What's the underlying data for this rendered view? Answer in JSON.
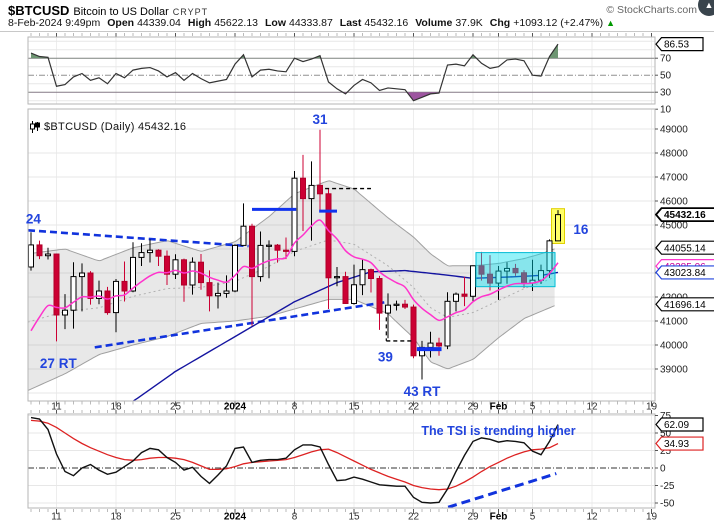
{
  "header": {
    "symbol": "$BTCUSD",
    "name": "Bitcoin to US Dollar",
    "exchange": "CRYPT",
    "copyright": "© StockCharts.com",
    "datetime": "8-Feb-2024 9:49pm",
    "quote": [
      {
        "label": "Open",
        "value": "44339.04"
      },
      {
        "label": "High",
        "value": "45622.13"
      },
      {
        "label": "Low",
        "value": "44333.87"
      },
      {
        "label": "Last",
        "value": "45432.16"
      },
      {
        "label": "Volume",
        "value": "37.9K"
      },
      {
        "label": "Chg",
        "value": "+1093.12 (+2.47%)"
      }
    ],
    "chg_direction": "up"
  },
  "chart_label": {
    "icon": "candlestick-chart-icon",
    "text": "$BTCUSD (Daily) 45432.16"
  },
  "colors": {
    "annotation_blue": "#2244dd",
    "candle_up": "#ffffff",
    "candle_down": "#cc0033",
    "pink_ma": "#ff33cc",
    "navy_ma": "#1414a0",
    "band_edge": "#a0a0a0",
    "box_cyan": "#00bcd4",
    "highlight_yellow": "#ffff66",
    "tsi_line": "#111111",
    "tsi_signal": "#dd2222",
    "overbought_fill": "#6e9673",
    "oversold_fill": "#9d55a0",
    "chg_green": "#009900"
  },
  "chart_data": {
    "x_labels": [
      {
        "text": "11",
        "i": 3
      },
      {
        "text": "18",
        "i": 10
      },
      {
        "text": "25",
        "i": 17
      },
      {
        "text": "2024",
        "i": 24,
        "bold": true
      },
      {
        "text": "8",
        "i": 31
      },
      {
        "text": "15",
        "i": 38
      },
      {
        "text": "22",
        "i": 45
      },
      {
        "text": "29",
        "i": 52
      },
      {
        "text": "Feb",
        "i": 55,
        "bold": true
      },
      {
        "text": "5",
        "i": 59
      },
      {
        "text": "12",
        "i": 66
      },
      {
        "text": "19",
        "i": 73
      }
    ],
    "panels": [
      {
        "id": "rsi",
        "type": "line",
        "ylim": [
          8,
          95
        ],
        "yticks": [
          70,
          50,
          30,
          10
        ],
        "overbought": 70,
        "oversold": 30,
        "midline": 50,
        "last_tag": "86.53",
        "values": [
          76,
          72,
          71,
          37,
          39,
          48,
          52,
          44,
          47,
          40,
          52,
          47,
          56,
          58,
          59,
          55,
          48,
          53,
          44,
          52,
          46,
          41,
          43,
          45,
          63,
          74,
          48,
          56,
          57,
          55,
          54,
          70,
          66,
          69,
          73,
          42,
          34,
          28,
          38,
          45,
          41,
          32,
          35,
          34,
          33,
          20,
          24,
          28,
          29,
          62,
          63,
          61,
          74,
          64,
          58,
          60,
          68,
          69,
          67,
          50,
          49,
          72,
          86.53
        ]
      },
      {
        "id": "price",
        "type": "candlestick",
        "ylim": [
          37650,
          49790
        ],
        "yticks": [
          49000,
          48000,
          47000,
          46000,
          45000,
          44000,
          43000,
          42000,
          41000,
          40000,
          39000
        ],
        "candles": [
          [
            43250,
            44700,
            43100,
            44170
          ],
          [
            44170,
            44350,
            43580,
            43720
          ],
          [
            43720,
            44050,
            43560,
            43790
          ],
          [
            43790,
            43810,
            40150,
            41250
          ],
          [
            41250,
            42120,
            40660,
            41450
          ],
          [
            41450,
            43450,
            40680,
            42850
          ],
          [
            42850,
            43400,
            41400,
            43000
          ],
          [
            43000,
            43080,
            41680,
            41940
          ],
          [
            41940,
            42680,
            41700,
            42250
          ],
          [
            42250,
            42420,
            41260,
            41350
          ],
          [
            41350,
            42750,
            40530,
            42650
          ],
          [
            42650,
            43480,
            41810,
            42250
          ],
          [
            42250,
            44280,
            42200,
            43650
          ],
          [
            43650,
            44240,
            43290,
            43850
          ],
          [
            43850,
            44400,
            43440,
            43950
          ],
          [
            43950,
            43990,
            43290,
            43700
          ],
          [
            43700,
            43940,
            42500,
            42950
          ],
          [
            42950,
            43780,
            42750,
            43550
          ],
          [
            43550,
            43600,
            41800,
            42500
          ],
          [
            42500,
            43650,
            42100,
            43450
          ],
          [
            43450,
            43790,
            42300,
            42600
          ],
          [
            42600,
            43110,
            41400,
            42050
          ],
          [
            42050,
            42600,
            41520,
            42150
          ],
          [
            42150,
            42900,
            41970,
            42250
          ],
          [
            42250,
            44200,
            42200,
            44150
          ],
          [
            44150,
            45900,
            44150,
            44950
          ],
          [
            44950,
            45050,
            40800,
            42850
          ],
          [
            42850,
            44730,
            42640,
            44150
          ],
          [
            44150,
            44360,
            42780,
            44160
          ],
          [
            44160,
            44210,
            43430,
            43950
          ],
          [
            43950,
            44480,
            43580,
            43900
          ],
          [
            43900,
            47250,
            43700,
            46950
          ],
          [
            46950,
            47920,
            44750,
            46100
          ],
          [
            46100,
            47650,
            44350,
            46650
          ],
          [
            46650,
            48970,
            45600,
            46300
          ],
          [
            46300,
            46500,
            41500,
            42800
          ],
          [
            42800,
            43250,
            42450,
            42850
          ],
          [
            42850,
            43050,
            41720,
            41730
          ],
          [
            41730,
            43350,
            41680,
            42510
          ],
          [
            42510,
            43600,
            42080,
            43140
          ],
          [
            43140,
            43180,
            42190,
            42770
          ],
          [
            42770,
            42880,
            40630,
            41330
          ],
          [
            41330,
            42150,
            40280,
            41660
          ],
          [
            41660,
            41850,
            41440,
            41700
          ],
          [
            41700,
            41880,
            41500,
            41580
          ],
          [
            41580,
            41680,
            39450,
            39550
          ],
          [
            39550,
            40170,
            38560,
            39900
          ],
          [
            39900,
            40550,
            39480,
            40080
          ],
          [
            40080,
            40300,
            39550,
            39960
          ],
          [
            39960,
            42200,
            39830,
            41820
          ],
          [
            41820,
            42190,
            41400,
            42120
          ],
          [
            42120,
            42840,
            41620,
            42030
          ],
          [
            42030,
            43320,
            41790,
            43300
          ],
          [
            43300,
            43880,
            42680,
            42950
          ],
          [
            42950,
            43745,
            42270,
            42580
          ],
          [
            42580,
            43290,
            41880,
            43080
          ],
          [
            43080,
            43450,
            42550,
            43190
          ],
          [
            43190,
            43380,
            42880,
            43010
          ],
          [
            43010,
            43120,
            42380,
            42580
          ],
          [
            42580,
            43550,
            42250,
            42700
          ],
          [
            42700,
            43350,
            42540,
            43100
          ],
          [
            43100,
            44400,
            42790,
            44340
          ],
          [
            44339.04,
            45622.13,
            44333.87,
            45432.16
          ]
        ],
        "overlays": {
          "pink_ema": {
            "period": 10,
            "seed": 39800
          },
          "navy_anchors": [
            [
              8,
              36200
            ],
            [
              12,
              37650
            ],
            [
              17,
              38900
            ],
            [
              24,
              40350
            ],
            [
              31,
              41800
            ],
            [
              36,
              42600
            ],
            [
              40,
              43050
            ],
            [
              44,
              43100
            ],
            [
              48,
              42950
            ],
            [
              52,
              42780
            ],
            [
              56,
              42830
            ],
            [
              60,
              42900
            ],
            [
              62,
              43025
            ]
          ],
          "band_anchors": [
            [
              -0.4,
              43800,
              38100
            ],
            [
              4,
              44000,
              38800
            ],
            [
              8,
              43500,
              39600
            ],
            [
              12,
              44050,
              40000
            ],
            [
              16,
              44350,
              40350
            ],
            [
              20,
              43900,
              40900
            ],
            [
              24,
              44300,
              41000
            ],
            [
              28,
              45350,
              41200
            ],
            [
              31,
              46300,
              41500
            ],
            [
              35,
              46850,
              41900
            ],
            [
              38,
              46500,
              41900
            ],
            [
              42,
              45300,
              41300
            ],
            [
              45,
              44500,
              40300
            ],
            [
              47,
              43800,
              39300
            ],
            [
              49,
              43300,
              39000
            ],
            [
              52,
              43300,
              39400
            ],
            [
              55,
              43400,
              40300
            ],
            [
              58,
              43600,
              41100
            ],
            [
              60,
              43800,
              41400
            ],
            [
              62,
              44055,
              41696
            ]
          ]
        },
        "trendlines": [
          {
            "from": [
              -0.35,
              44780
            ],
            "to": [
              25.6,
              44120
            ]
          },
          {
            "from": [
              7.5,
              39900
            ],
            "to": [
              42,
              41800
            ]
          }
        ],
        "segments": [
          {
            "from": [
              26,
              45650
            ],
            "to": [
              31.2,
              45650
            ],
            "style": "blue",
            "w": 3
          },
          {
            "from": [
              33.9,
              45580
            ],
            "to": [
              36,
              45580
            ],
            "style": "blue",
            "w": 3
          },
          {
            "from": [
              45.4,
              39830
            ],
            "to": [
              48.3,
              39830
            ],
            "style": "blue",
            "w": 4
          },
          {
            "from": [
              34.6,
              46520
            ],
            "to": [
              40,
              46520
            ],
            "style": "black-dashed",
            "w": 1.4
          },
          {
            "from": [
              41.8,
              40170
            ],
            "to": [
              44.8,
              40170
            ],
            "style": "black-dashed",
            "w": 1.4
          },
          {
            "from": [
              41.8,
              41150
            ],
            "to": [
              41.8,
              40170
            ],
            "style": "black-dashed",
            "w": 1.2
          }
        ],
        "box": {
          "from_index": 52.35,
          "to_index": 61.65,
          "top": 43850,
          "bottom": 42430
        },
        "highlight": {
          "index": 62,
          "top": 45680,
          "bottom": 44230
        },
        "annotations": [
          {
            "text": "24",
            "i": -0.6,
            "p": 45225,
            "anchor": "start"
          },
          {
            "text": "31",
            "i": 34,
            "p": 49375,
            "anchor": "middle"
          },
          {
            "text": "27 RT",
            "i": 1.05,
            "p": 39210,
            "anchor": "start"
          },
          {
            "text": "39",
            "i": 41.7,
            "p": 39480,
            "anchor": "middle"
          },
          {
            "text": "43 RT",
            "i": 46,
            "p": 38040,
            "anchor": "middle"
          },
          {
            "text": "16",
            "i": 64.7,
            "p": 44790,
            "anchor": "middle"
          }
        ],
        "tags": [
          {
            "value": "45432.16",
            "price": 45432.16,
            "color": "#000000",
            "bold": true
          },
          {
            "value": "43285.06",
            "price": 43285.06,
            "color": "#ff33cc"
          },
          {
            "value": "43023.84",
            "price": 43023.84,
            "color": "#2244dd"
          },
          {
            "value": "44055.14",
            "price": 44055.14,
            "color": "#000000"
          },
          {
            "value": "41696.14",
            "price": 41696.14,
            "color": "#000000"
          }
        ]
      },
      {
        "id": "tsi",
        "type": "line",
        "ylim": [
          -70,
          80
        ],
        "yticks": [
          75,
          50,
          25,
          0,
          -25,
          -50
        ],
        "series": [
          {
            "name": "tsi",
            "values": [
              72,
              70,
              55,
              20,
              -5,
              -11,
              0,
              5,
              -3,
              -9,
              -6,
              2,
              10,
              22,
              28,
              26,
              15,
              8,
              -3,
              1,
              -12,
              -22,
              -10,
              3,
              28,
              30,
              8,
              11,
              12,
              12,
              14,
              26,
              33,
              33,
              30,
              5,
              -18,
              -17,
              -13,
              -16,
              -20,
              -24,
              -25,
              -26,
              -26,
              -42,
              -49,
              -50,
              -49,
              -30,
              -5,
              18,
              38,
              43,
              41,
              37,
              39,
              38,
              36,
              24,
              19,
              38,
              62.09
            ]
          },
          {
            "name": "signal",
            "values": [
              68,
              67,
              64,
              58,
              50,
              42,
              35,
              29,
              24,
              19,
              15,
              12,
              11,
              12,
              14,
              15,
              15,
              14,
              12,
              8,
              3,
              -2,
              -2,
              -1,
              2,
              6,
              8,
              9,
              10,
              11,
              12,
              15,
              19,
              23,
              26,
              27,
              22,
              16,
              10,
              4,
              -2,
              -7,
              -12,
              -16,
              -20,
              -25,
              -28,
              -30,
              -31,
              -30,
              -26,
              -20,
              -13,
              -5,
              2,
              8,
              14,
              19,
              23,
              26,
              27,
              29,
              34.93
            ]
          }
        ],
        "trendline": {
          "from": [
            47.5,
            -62
          ],
          "to": [
            61.8,
            -8
          ]
        },
        "note": {
          "text": "The TSI is trending higher",
          "i": 55,
          "v": 53
        },
        "tags": [
          {
            "value": "62.09",
            "v": 62.09,
            "color": "#000000"
          },
          {
            "value": "34.93",
            "v": 34.93,
            "color": "#dd2222"
          }
        ]
      }
    ]
  }
}
